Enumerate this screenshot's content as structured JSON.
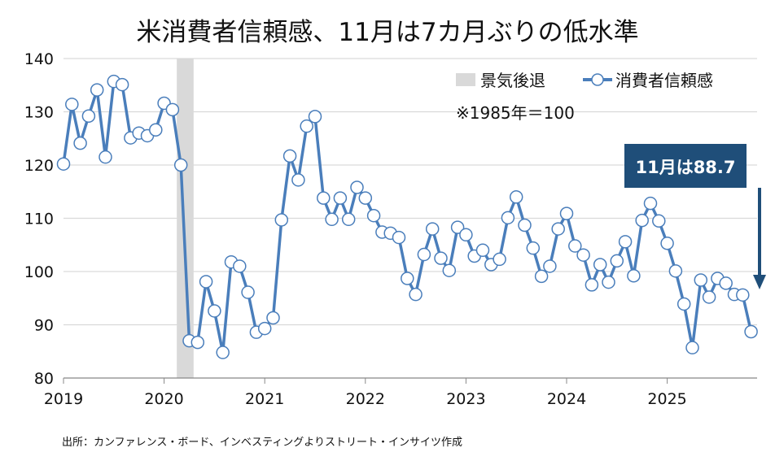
{
  "chart_data": {
    "type": "line",
    "title": "米消費者信頼感、11月は7カ月ぶりの低水準",
    "source": "出所：カンファレンス・ボード、インベスティングよりストリート・インサイツ作成",
    "note": "※1985年＝100",
    "legend": {
      "recession": "景気後退",
      "series": "消費者信頼感",
      "placement": "top-right"
    },
    "annotation": "11月は88.7",
    "ylim": [
      80,
      140
    ],
    "yticks": [
      80,
      90,
      100,
      110,
      120,
      130,
      140
    ],
    "xticks": [
      "2019",
      "2020",
      "2021",
      "2022",
      "2023",
      "2024",
      "2025"
    ],
    "grid": true,
    "recession_period": [
      "2020-03",
      "2020-04"
    ],
    "colors": {
      "line": "#4a7ebb",
      "recession": "#d9d9d9",
      "annotation": "#1f4e79"
    },
    "x_start": "2019-01",
    "series": [
      {
        "name": "消費者信頼感",
        "values": [
          120.2,
          131.4,
          124.1,
          129.2,
          134.1,
          121.5,
          135.7,
          135.1,
          125.1,
          126.0,
          125.5,
          126.6,
          131.6,
          130.4,
          120.0,
          87.0,
          86.7,
          98.1,
          92.6,
          84.8,
          101.8,
          101.0,
          96.1,
          88.6,
          89.3,
          91.3,
          109.7,
          121.7,
          117.2,
          127.3,
          129.1,
          113.8,
          109.8,
          113.8,
          109.8,
          115.8,
          113.8,
          110.5,
          107.4,
          107.2,
          106.4,
          98.7,
          95.7,
          103.2,
          108.0,
          102.5,
          100.2,
          108.3,
          106.9,
          102.9,
          104.0,
          101.3,
          102.3,
          110.1,
          114.0,
          108.7,
          104.4,
          99.1,
          101.0,
          108.0,
          110.9,
          104.8,
          103.1,
          97.5,
          101.3,
          98.0,
          102.0,
          105.6,
          99.2,
          109.6,
          112.8,
          109.5,
          105.3,
          100.1,
          93.9,
          85.7,
          98.4,
          95.2,
          98.7,
          97.8,
          95.7,
          95.6,
          88.7
        ]
      }
    ]
  }
}
